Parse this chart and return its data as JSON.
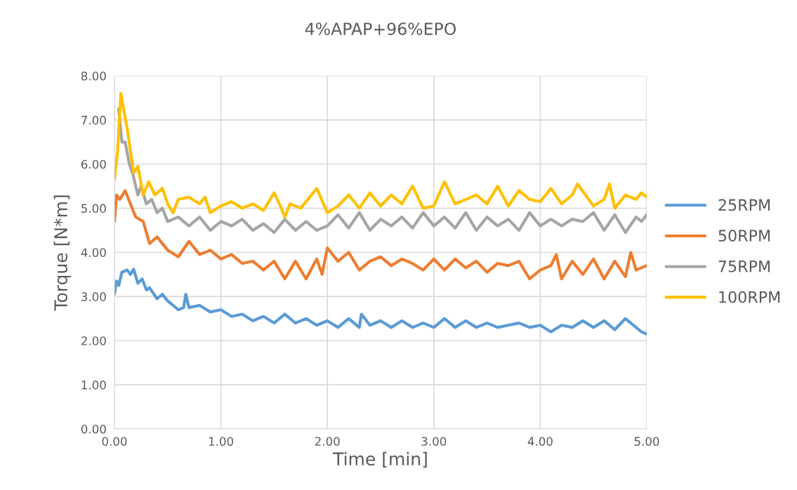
{
  "chart_data": {
    "type": "line",
    "title": "4%APAP+96%EPO",
    "xlabel": "Time [min]",
    "ylabel": "Torque [N*m]",
    "xlim": [
      0,
      5
    ],
    "ylim": [
      0,
      8
    ],
    "xticks": [
      {
        "value": 0,
        "label": "0.00"
      },
      {
        "value": 1,
        "label": "1.00"
      },
      {
        "value": 2,
        "label": "2.00"
      },
      {
        "value": 3,
        "label": "3.00"
      },
      {
        "value": 4,
        "label": "4.00"
      },
      {
        "value": 5,
        "label": "5.00"
      }
    ],
    "yticks": [
      {
        "value": 0,
        "label": "0.00"
      },
      {
        "value": 1,
        "label": "1.00"
      },
      {
        "value": 2,
        "label": "2.00"
      },
      {
        "value": 3,
        "label": "3.00"
      },
      {
        "value": 4,
        "label": "4.00"
      },
      {
        "value": 5,
        "label": "5.00"
      },
      {
        "value": 6,
        "label": "6.00"
      },
      {
        "value": 7,
        "label": "7.00"
      },
      {
        "value": 8,
        "label": "8.00"
      }
    ],
    "grid": true,
    "legend": "right",
    "marker": "none",
    "line_style": "solid",
    "series": [
      {
        "name": "25RPM",
        "color": "#5b9bd5",
        "x": [
          0,
          0.02,
          0.04,
          0.07,
          0.12,
          0.15,
          0.18,
          0.22,
          0.26,
          0.3,
          0.33,
          0.4,
          0.45,
          0.5,
          0.6,
          0.65,
          0.67,
          0.7,
          0.8,
          0.9,
          1.0,
          1.1,
          1.2,
          1.3,
          1.4,
          1.5,
          1.6,
          1.7,
          1.8,
          1.9,
          2.0,
          2.1,
          2.2,
          2.3,
          2.32,
          2.4,
          2.5,
          2.6,
          2.7,
          2.8,
          2.9,
          3.0,
          3.1,
          3.2,
          3.3,
          3.4,
          3.5,
          3.6,
          3.7,
          3.8,
          3.9,
          4.0,
          4.1,
          4.2,
          4.3,
          4.4,
          4.5,
          4.6,
          4.7,
          4.8,
          4.9,
          4.95,
          5.0
        ],
        "values": [
          3.05,
          3.35,
          3.25,
          3.55,
          3.6,
          3.5,
          3.62,
          3.3,
          3.4,
          3.15,
          3.2,
          2.95,
          3.05,
          2.9,
          2.7,
          2.75,
          3.05,
          2.75,
          2.8,
          2.65,
          2.7,
          2.55,
          2.6,
          2.45,
          2.55,
          2.4,
          2.6,
          2.4,
          2.5,
          2.35,
          2.45,
          2.3,
          2.5,
          2.3,
          2.6,
          2.35,
          2.45,
          2.3,
          2.45,
          2.3,
          2.4,
          2.3,
          2.5,
          2.3,
          2.45,
          2.3,
          2.4,
          2.3,
          2.35,
          2.4,
          2.3,
          2.35,
          2.2,
          2.35,
          2.3,
          2.45,
          2.3,
          2.45,
          2.25,
          2.5,
          2.3,
          2.2,
          2.15
        ]
      },
      {
        "name": "50RPM",
        "color": "#ed7d31",
        "x": [
          0,
          0.02,
          0.05,
          0.1,
          0.15,
          0.2,
          0.27,
          0.33,
          0.4,
          0.45,
          0.5,
          0.6,
          0.7,
          0.8,
          0.9,
          1.0,
          1.1,
          1.2,
          1.3,
          1.4,
          1.5,
          1.6,
          1.7,
          1.8,
          1.9,
          1.95,
          2.0,
          2.1,
          2.2,
          2.3,
          2.4,
          2.5,
          2.6,
          2.7,
          2.8,
          2.9,
          3.0,
          3.1,
          3.2,
          3.3,
          3.4,
          3.5,
          3.6,
          3.7,
          3.8,
          3.9,
          4.0,
          4.1,
          4.15,
          4.2,
          4.3,
          4.4,
          4.5,
          4.6,
          4.7,
          4.8,
          4.85,
          4.9,
          5.0
        ],
        "values": [
          4.7,
          5.3,
          5.2,
          5.4,
          5.1,
          4.8,
          4.7,
          4.2,
          4.35,
          4.2,
          4.05,
          3.9,
          4.25,
          3.95,
          4.05,
          3.85,
          3.95,
          3.75,
          3.8,
          3.6,
          3.8,
          3.4,
          3.8,
          3.4,
          3.85,
          3.5,
          4.1,
          3.8,
          4.0,
          3.6,
          3.8,
          3.9,
          3.7,
          3.85,
          3.75,
          3.6,
          3.85,
          3.6,
          3.85,
          3.65,
          3.8,
          3.55,
          3.75,
          3.7,
          3.8,
          3.4,
          3.6,
          3.7,
          3.95,
          3.4,
          3.8,
          3.5,
          3.85,
          3.4,
          3.8,
          3.45,
          4.0,
          3.6,
          3.7
        ]
      },
      {
        "name": "75RPM",
        "color": "#a5a5a5",
        "x": [
          0.04,
          0.07,
          0.1,
          0.14,
          0.17,
          0.22,
          0.25,
          0.3,
          0.35,
          0.4,
          0.45,
          0.5,
          0.6,
          0.7,
          0.8,
          0.9,
          1.0,
          1.1,
          1.2,
          1.3,
          1.4,
          1.5,
          1.6,
          1.7,
          1.8,
          1.9,
          2.0,
          2.1,
          2.2,
          2.3,
          2.4,
          2.5,
          2.6,
          2.7,
          2.8,
          2.9,
          3.0,
          3.1,
          3.2,
          3.3,
          3.4,
          3.5,
          3.6,
          3.7,
          3.8,
          3.9,
          4.0,
          4.1,
          4.2,
          4.3,
          4.4,
          4.5,
          4.6,
          4.7,
          4.8,
          4.9,
          4.95,
          5.0
        ],
        "values": [
          7.25,
          6.5,
          6.5,
          6.0,
          5.8,
          5.3,
          5.5,
          5.1,
          5.2,
          4.9,
          5.0,
          4.7,
          4.8,
          4.6,
          4.8,
          4.5,
          4.7,
          4.6,
          4.75,
          4.5,
          4.65,
          4.45,
          4.75,
          4.5,
          4.7,
          4.5,
          4.6,
          4.85,
          4.55,
          4.9,
          4.5,
          4.75,
          4.6,
          4.8,
          4.55,
          4.9,
          4.6,
          4.8,
          4.55,
          4.9,
          4.5,
          4.8,
          4.6,
          4.75,
          4.5,
          4.9,
          4.6,
          4.75,
          4.6,
          4.75,
          4.7,
          4.9,
          4.5,
          4.85,
          4.45,
          4.8,
          4.7,
          4.85
        ]
      },
      {
        "name": "100RPM",
        "color": "#ffc000",
        "x": [
          0,
          0.03,
          0.06,
          0.09,
          0.12,
          0.15,
          0.18,
          0.22,
          0.27,
          0.32,
          0.38,
          0.45,
          0.5,
          0.55,
          0.6,
          0.7,
          0.8,
          0.85,
          0.9,
          1.0,
          1.1,
          1.2,
          1.3,
          1.4,
          1.5,
          1.55,
          1.6,
          1.65,
          1.75,
          1.9,
          2.0,
          2.1,
          2.2,
          2.3,
          2.4,
          2.5,
          2.6,
          2.7,
          2.8,
          2.9,
          3.0,
          3.1,
          3.2,
          3.3,
          3.4,
          3.5,
          3.6,
          3.7,
          3.8,
          3.9,
          4.0,
          4.1,
          4.2,
          4.3,
          4.35,
          4.5,
          4.6,
          4.65,
          4.7,
          4.8,
          4.9,
          4.95,
          5.0
        ],
        "values": [
          5.65,
          6.3,
          7.6,
          7.2,
          6.8,
          6.3,
          5.8,
          5.95,
          5.3,
          5.6,
          5.3,
          5.45,
          5.1,
          4.9,
          5.2,
          5.25,
          5.1,
          5.25,
          4.9,
          5.05,
          5.15,
          5.0,
          5.1,
          4.95,
          5.35,
          5.1,
          4.8,
          5.1,
          5.0,
          5.45,
          4.9,
          5.05,
          5.3,
          5.0,
          5.35,
          5.05,
          5.3,
          5.1,
          5.5,
          5.0,
          5.05,
          5.6,
          5.1,
          5.2,
          5.3,
          5.1,
          5.5,
          5.05,
          5.4,
          5.2,
          5.15,
          5.45,
          5.1,
          5.3,
          5.55,
          5.05,
          5.2,
          5.55,
          5.0,
          5.3,
          5.2,
          5.35,
          5.25
        ]
      }
    ]
  }
}
